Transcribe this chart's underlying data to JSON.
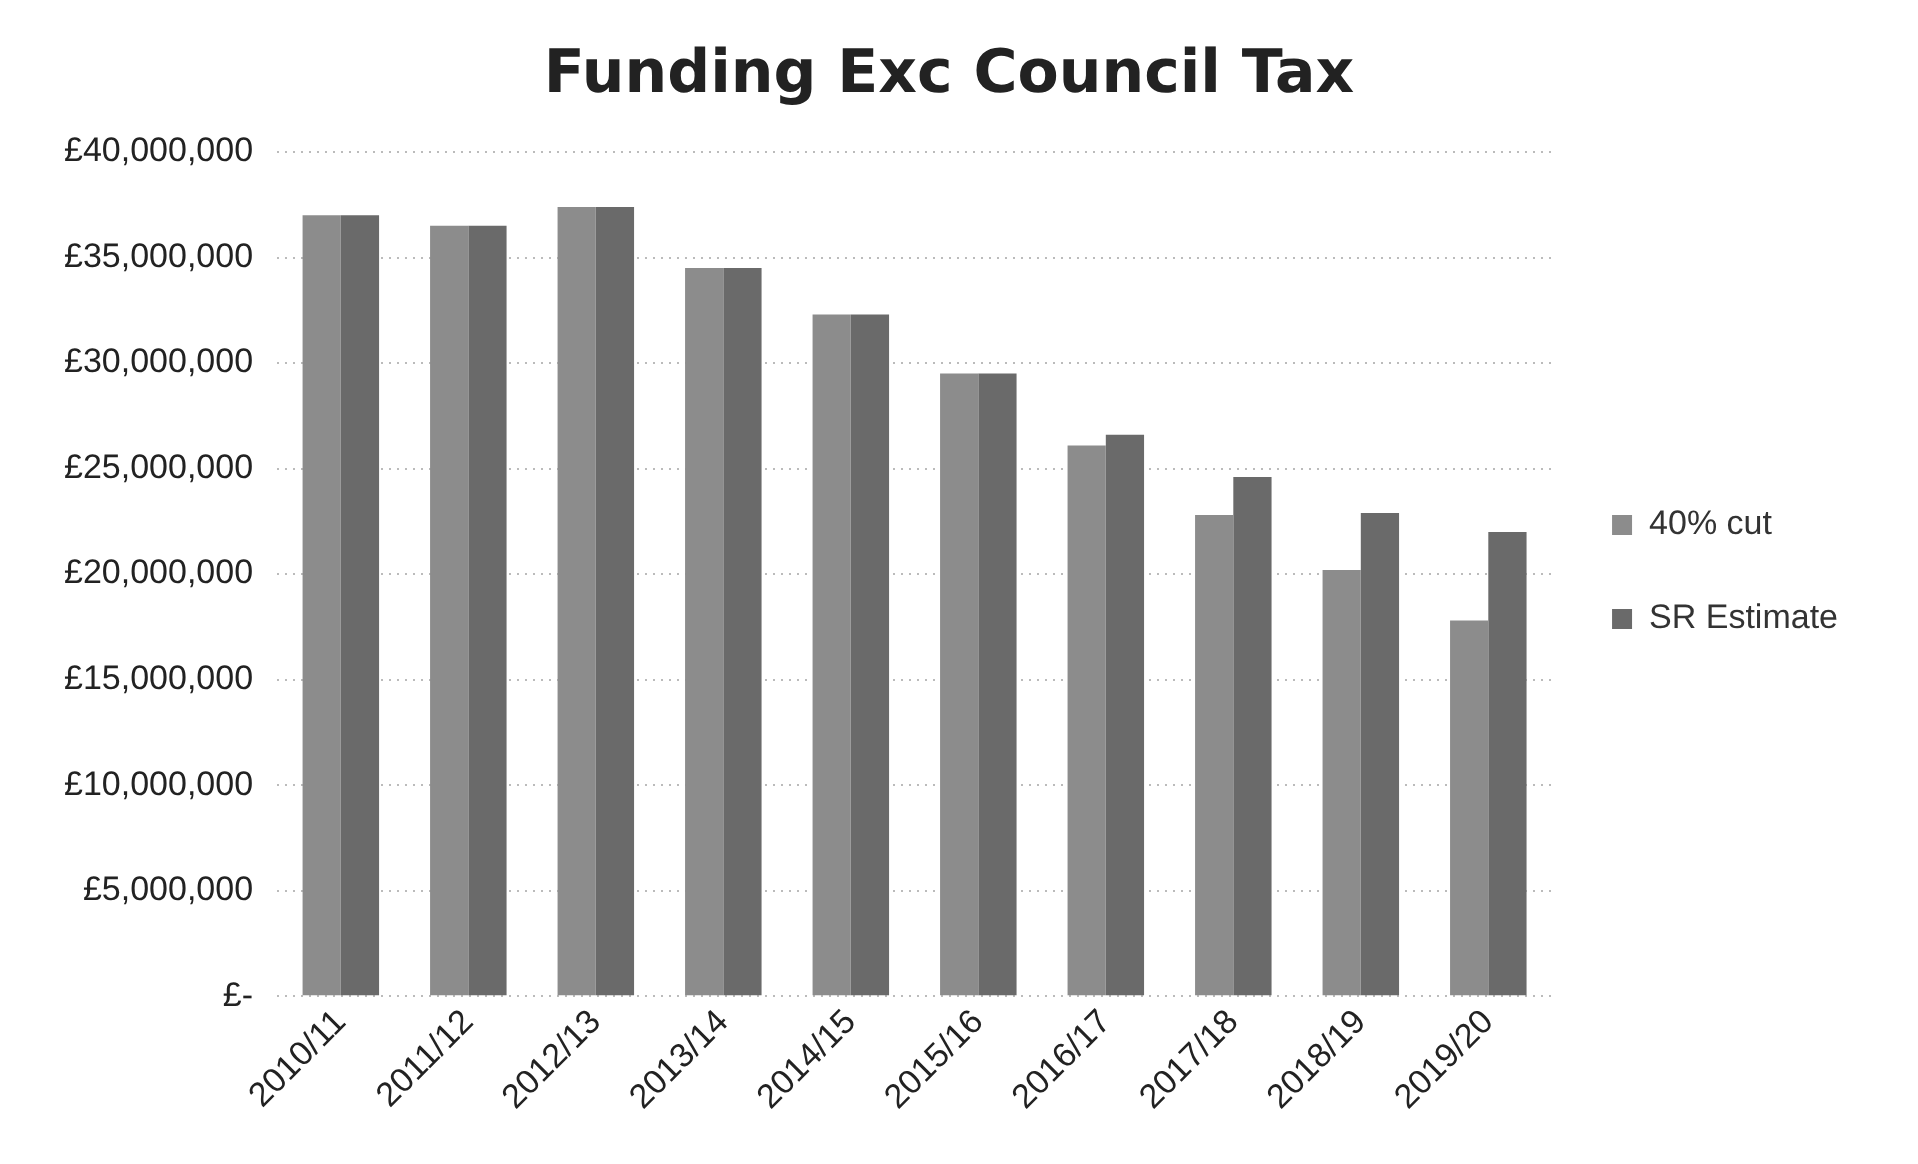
{
  "chart_data": {
    "type": "bar",
    "title": "Funding Exc Council Tax",
    "categories": [
      "2010/11",
      "2011/12",
      "2012/13",
      "2013/14",
      "2014/15",
      "2015/16",
      "2016/17",
      "2017/18",
      "2018/19",
      "2019/20"
    ],
    "series": [
      {
        "name": "40% cut",
        "color": "#8c8c8c",
        "values": [
          37000000,
          36500000,
          37400000,
          34500000,
          32300000,
          29500000,
          26100000,
          22800000,
          20200000,
          17800000
        ]
      },
      {
        "name": "SR Estimate",
        "color": "#6a6a6a",
        "values": [
          37000000,
          36500000,
          37400000,
          34500000,
          32300000,
          29500000,
          26600000,
          24600000,
          22900000,
          22000000
        ]
      }
    ],
    "ylim": [
      0,
      40000000
    ],
    "yticks": [
      {
        "value": 0,
        "label": "£-"
      },
      {
        "value": 5000000,
        "label": "£5,000,000"
      },
      {
        "value": 10000000,
        "label": "£10,000,000"
      },
      {
        "value": 15000000,
        "label": "£15,000,000"
      },
      {
        "value": 20000000,
        "label": "£20,000,000"
      },
      {
        "value": 25000000,
        "label": "£25,000,000"
      },
      {
        "value": 30000000,
        "label": "£30,000,000"
      },
      {
        "value": 35000000,
        "label": "£35,000,000"
      },
      {
        "value": 40000000,
        "label": "£40,000,000"
      }
    ],
    "grid": "y",
    "legend": "right"
  }
}
